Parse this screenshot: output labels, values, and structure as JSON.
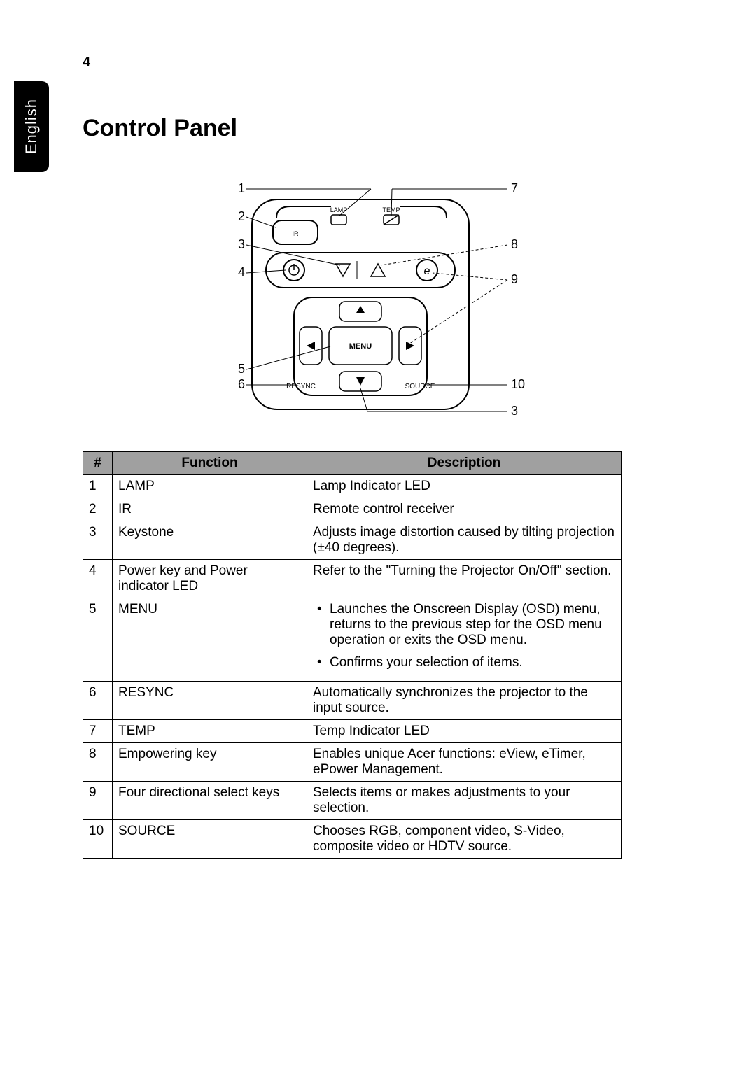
{
  "page_number": "4",
  "side_tab": "English",
  "title": "Control Panel",
  "diagram": {
    "labels": {
      "lamp": "LAMP",
      "temp": "TEMP",
      "ir": "IR",
      "menu": "MENU",
      "resync": "RESYNC",
      "source": "SOURCE"
    },
    "callouts_left": [
      "1",
      "2",
      "3",
      "4",
      "5",
      "6"
    ],
    "callouts_right": [
      "7",
      "8",
      "9",
      "10",
      "3"
    ],
    "line_color": "#000000",
    "background": "#ffffff"
  },
  "table": {
    "headers": {
      "num": "#",
      "function": "Function",
      "description": "Description"
    },
    "rows": [
      {
        "num": "1",
        "function": "LAMP",
        "description": "Lamp Indicator LED"
      },
      {
        "num": "2",
        "function": "IR",
        "description": "Remote control receiver"
      },
      {
        "num": "3",
        "function": "Keystone",
        "description": "Adjusts image distortion caused by tilting projection (±40 degrees)."
      },
      {
        "num": "4",
        "function": "Power key and Power indicator LED",
        "description": "Refer to the \"Turning the Projector On/Off\" section."
      },
      {
        "num": "5",
        "function": "MENU",
        "bullets": [
          "Launches the Onscreen Display (OSD) menu, returns to the previous step for the OSD menu operation or exits the OSD menu.",
          "Confirms your selection of items."
        ]
      },
      {
        "num": "6",
        "function": "RESYNC",
        "description": "Automatically synchronizes the projector to the input source."
      },
      {
        "num": "7",
        "function": "TEMP",
        "description": "Temp Indicator LED"
      },
      {
        "num": "8",
        "function": "Empowering key",
        "description": "Enables unique Acer functions: eView, eTimer, ePower Management."
      },
      {
        "num": "9",
        "function": "Four directional select keys",
        "description": "Selects items or makes adjustments to your selection."
      },
      {
        "num": "10",
        "function": "SOURCE",
        "description": "Chooses RGB, component video, S-Video, composite video or HDTV source."
      }
    ],
    "header_bg": "#a0a0a0",
    "border_color": "#000000",
    "fontsize": 19
  }
}
